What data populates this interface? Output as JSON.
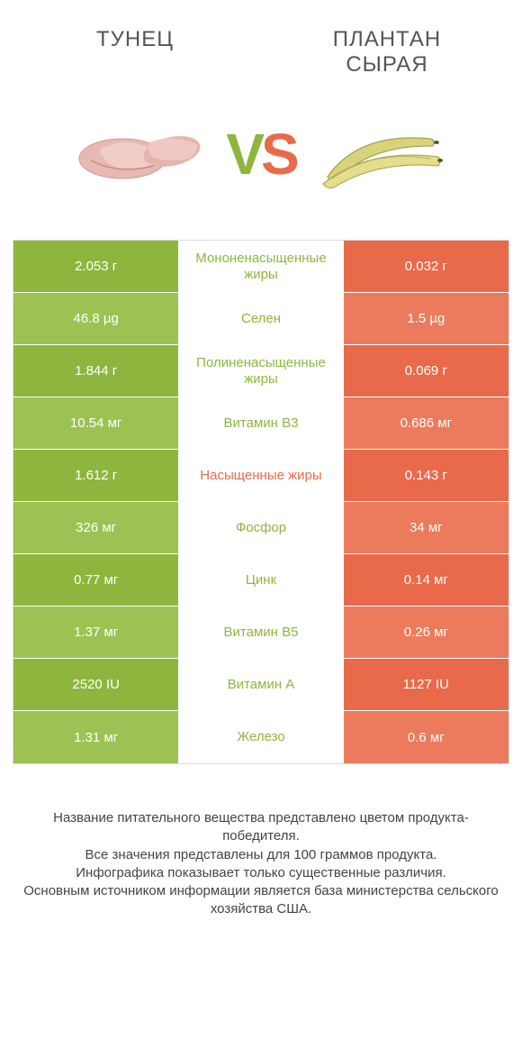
{
  "header": {
    "left_title": "ТУНЕЦ",
    "right_title": "ПЛАНТАН СЫРАЯ",
    "vs_v": "V",
    "vs_s": "S"
  },
  "colors": {
    "left": "#8eb63e",
    "right": "#e96a4a",
    "left_alt": "#9cc253",
    "right_alt": "#ec7b5d",
    "mid_left_text": "#8eb63e",
    "mid_right_text": "#e96a4a",
    "border": "#dddddd"
  },
  "table": {
    "rows": [
      {
        "left": "2.053 г",
        "mid": "Мононенасыщенные жиры",
        "right": "0.032 г",
        "mid_color": "left"
      },
      {
        "left": "46.8 µg",
        "mid": "Селен",
        "right": "1.5 µg",
        "mid_color": "left"
      },
      {
        "left": "1.844 г",
        "mid": "Полиненасыщенные жиры",
        "right": "0.069 г",
        "mid_color": "left"
      },
      {
        "left": "10.54 мг",
        "mid": "Витамин B3",
        "right": "0.686 мг",
        "mid_color": "left"
      },
      {
        "left": "1.612 г",
        "mid": "Насыщенные жиры",
        "right": "0.143 г",
        "mid_color": "right"
      },
      {
        "left": "326 мг",
        "mid": "Фосфор",
        "right": "34 мг",
        "mid_color": "left"
      },
      {
        "left": "0.77 мг",
        "mid": "Цинк",
        "right": "0.14 мг",
        "mid_color": "left"
      },
      {
        "left": "1.37 мг",
        "mid": "Витамин B5",
        "right": "0.26 мг",
        "mid_color": "left"
      },
      {
        "left": "2520 IU",
        "mid": "Витамин A",
        "right": "1127 IU",
        "mid_color": "left"
      },
      {
        "left": "1.31 мг",
        "mid": "Железо",
        "right": "0.6 мг",
        "mid_color": "left"
      }
    ]
  },
  "footer": {
    "line1": "Название питательного вещества представлено цветом продукта-победителя.",
    "line2": "Все значения представлены для 100 граммов продукта.",
    "line3": "Инфографика показывает только существенные различия.",
    "line4": "Основным источником информации является база министерства сельского хозяйства США."
  }
}
